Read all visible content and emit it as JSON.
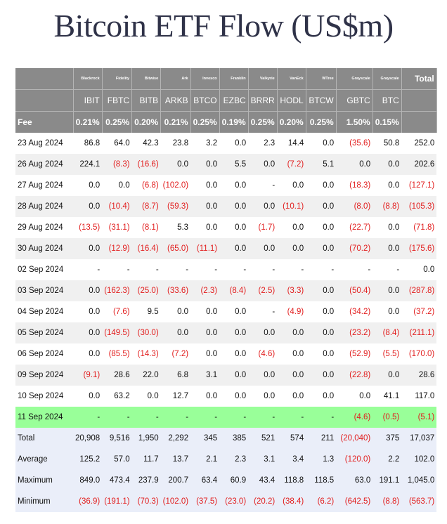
{
  "title": "Bitcoin ETF Flow (US$m)",
  "issuers": [
    "Blackrock",
    "Fidelity",
    "Bitwise",
    "Ark",
    "Invesco",
    "Franklin",
    "Valkyrie",
    "VanEck",
    "WTree",
    "Grayscale",
    "Grayscale"
  ],
  "total_label": "Total",
  "tickers": [
    "IBIT",
    "FBTC",
    "BITB",
    "ARKB",
    "BTCO",
    "EZBC",
    "BRRR",
    "HODL",
    "BTCW",
    "GBTC",
    "BTC"
  ],
  "fee_label": "Fee",
  "fees": [
    "0.21%",
    "0.25%",
    "0.20%",
    "0.21%",
    "0.25%",
    "0.19%",
    "0.25%",
    "0.20%",
    "0.25%",
    "1.50%",
    "0.15%"
  ],
  "rows": [
    {
      "date": "23 Aug 2024",
      "cells": [
        "86.8",
        "64.0",
        "42.3",
        "23.8",
        "3.2",
        "0.0",
        "2.3",
        "14.4",
        "0.0",
        "(35.6)",
        "50.8",
        "252.0"
      ]
    },
    {
      "date": "26 Aug 2024",
      "cells": [
        "224.1",
        "(8.3)",
        "(16.6)",
        "0.0",
        "0.0",
        "5.5",
        "0.0",
        "(7.2)",
        "5.1",
        "0.0",
        "0.0",
        "202.6"
      ]
    },
    {
      "date": "27 Aug 2024",
      "cells": [
        "0.0",
        "0.0",
        "(6.8)",
        "(102.0)",
        "0.0",
        "0.0",
        "-",
        "0.0",
        "0.0",
        "(18.3)",
        "0.0",
        "(127.1)"
      ]
    },
    {
      "date": "28 Aug 2024",
      "cells": [
        "0.0",
        "(10.4)",
        "(8.7)",
        "(59.3)",
        "0.0",
        "0.0",
        "0.0",
        "(10.1)",
        "0.0",
        "(8.0)",
        "(8.8)",
        "(105.3)"
      ]
    },
    {
      "date": "29 Aug 2024",
      "cells": [
        "(13.5)",
        "(31.1)",
        "(8.1)",
        "5.3",
        "0.0",
        "0.0",
        "(1.7)",
        "0.0",
        "0.0",
        "(22.7)",
        "0.0",
        "(71.8)"
      ]
    },
    {
      "date": "30 Aug 2024",
      "cells": [
        "0.0",
        "(12.9)",
        "(16.4)",
        "(65.0)",
        "(11.1)",
        "0.0",
        "0.0",
        "0.0",
        "0.0",
        "(70.2)",
        "0.0",
        "(175.6)"
      ]
    },
    {
      "date": "02 Sep 2024",
      "cells": [
        "-",
        "-",
        "-",
        "-",
        "-",
        "-",
        "-",
        "-",
        "-",
        "-",
        "-",
        "0.0"
      ]
    },
    {
      "date": "03 Sep 2024",
      "cells": [
        "0.0",
        "(162.3)",
        "(25.0)",
        "(33.6)",
        "(2.3)",
        "(8.4)",
        "(2.5)",
        "(3.3)",
        "0.0",
        "(50.4)",
        "0.0",
        "(287.8)"
      ]
    },
    {
      "date": "04 Sep 2024",
      "cells": [
        "0.0",
        "(7.6)",
        "9.5",
        "0.0",
        "0.0",
        "0.0",
        "-",
        "(4.9)",
        "0.0",
        "(34.2)",
        "0.0",
        "(37.2)"
      ]
    },
    {
      "date": "05 Sep 2024",
      "cells": [
        "0.0",
        "(149.5)",
        "(30.0)",
        "0.0",
        "0.0",
        "0.0",
        "0.0",
        "0.0",
        "0.0",
        "(23.2)",
        "(8.4)",
        "(211.1)"
      ]
    },
    {
      "date": "06 Sep 2024",
      "cells": [
        "0.0",
        "(85.5)",
        "(14.3)",
        "(7.2)",
        "0.0",
        "0.0",
        "(4.6)",
        "0.0",
        "0.0",
        "(52.9)",
        "(5.5)",
        "(170.0)"
      ]
    },
    {
      "date": "09 Sep 2024",
      "cells": [
        "(9.1)",
        "28.6",
        "22.0",
        "6.8",
        "3.1",
        "0.0",
        "0.0",
        "0.0",
        "0.0",
        "(22.8)",
        "0.0",
        "28.6"
      ]
    },
    {
      "date": "10 Sep 2024",
      "cells": [
        "0.0",
        "63.2",
        "0.0",
        "12.7",
        "0.0",
        "0.0",
        "0.0",
        "0.0",
        "0.0",
        "0.0",
        "41.1",
        "117.0"
      ]
    },
    {
      "date": "11 Sep 2024",
      "highlight": true,
      "cells": [
        "-",
        "-",
        "-",
        "-",
        "-",
        "-",
        "-",
        "-",
        "-",
        "(4.6)",
        "(0.5)",
        "(5.1)"
      ]
    }
  ],
  "stats": [
    {
      "label": "Total",
      "cells": [
        "20,908",
        "9,516",
        "1,950",
        "2,292",
        "345",
        "385",
        "521",
        "574",
        "211",
        "(20,040)",
        "375",
        "17,037"
      ]
    },
    {
      "label": "Average",
      "cells": [
        "125.2",
        "57.0",
        "11.7",
        "13.7",
        "2.1",
        "2.3",
        "3.1",
        "3.4",
        "1.3",
        "(120.0)",
        "2.2",
        "102.0"
      ]
    },
    {
      "label": "Maximum",
      "cells": [
        "849.0",
        "473.4",
        "237.9",
        "200.7",
        "63.4",
        "60.9",
        "43.4",
        "118.8",
        "118.5",
        "63.0",
        "191.1",
        "1,045.0"
      ]
    },
    {
      "label": "Minimum",
      "cells": [
        "(36.9)",
        "(191.1)",
        "(70.3)",
        "(102.0)",
        "(37.5)",
        "(23.0)",
        "(20.2)",
        "(38.4)",
        "(6.2)",
        "(642.5)",
        "(8.8)",
        "(563.7)"
      ]
    }
  ],
  "colors": {
    "header_bg": "#8a8a8a",
    "row_alt_bg": "#f0f0f0",
    "highlight_bg": "#99ff99",
    "stats_bg": "#eaeef9",
    "negative": "#e21e1e",
    "title": "#2f3248"
  }
}
